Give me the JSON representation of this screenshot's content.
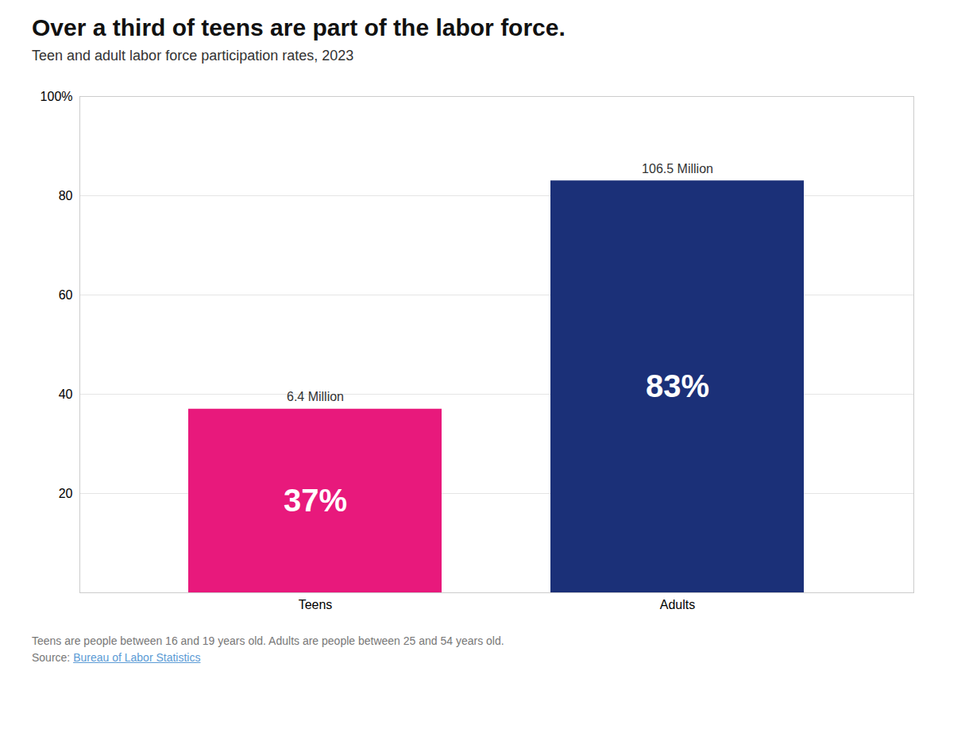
{
  "chart_data": {
    "type": "bar",
    "title": "Over a third of teens are part of the labor force.",
    "subtitle": "Teen and adult labor force participation rates, 2023",
    "categories": [
      "Teens",
      "Adults"
    ],
    "values": [
      37,
      83
    ],
    "value_labels": [
      "37%",
      "83%"
    ],
    "data_labels": true,
    "colors": [
      "#E8197C",
      "#1B3078"
    ],
    "bar_sublabels": [
      "6.4 Million",
      "106.5 Million"
    ],
    "ylim": [
      0,
      100
    ],
    "yticks": [
      20,
      40,
      60,
      80,
      {
        "value": 100,
        "label": "100%"
      }
    ],
    "grid": true,
    "footnote": "Teens are people between 16 and 19 years old. Adults are people between 25 and 54 years old.",
    "source_prefix": "Source: ",
    "source_link": "Bureau of Labor Statistics"
  }
}
